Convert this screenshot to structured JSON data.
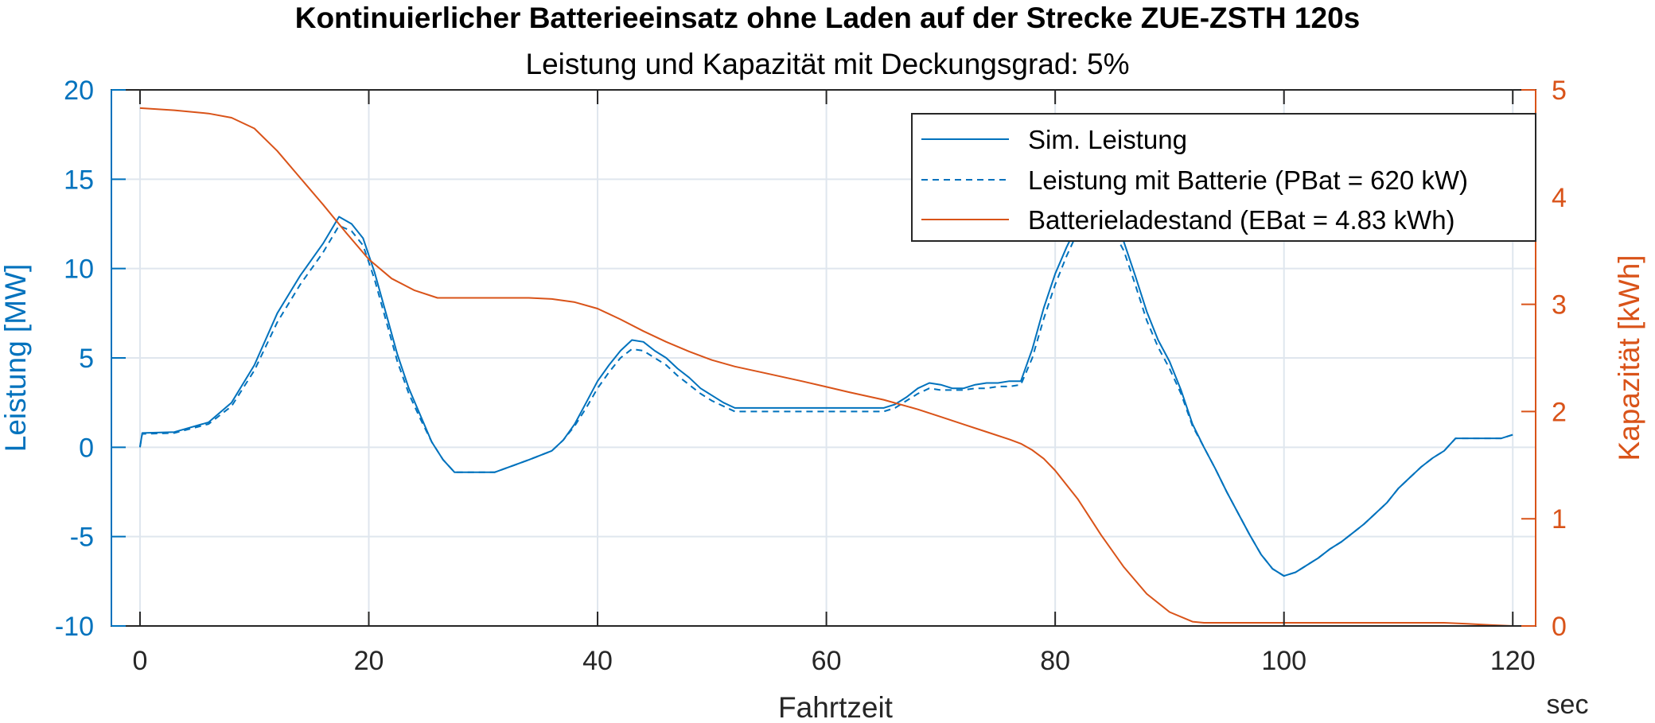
{
  "chart_data": {
    "type": "line",
    "title": "Kontinuierlicher Batterieeinsatz ohne Laden auf der Strecke ZUE-ZSTH 120s",
    "subtitle": "Leistung und Kapazität mit Deckungsgrad: 5%",
    "xlabel": "Fahrtzeit",
    "xunit": "sec",
    "ylabel_left": "Leistung [MW]",
    "ylabel_right": "Kapazität [kWh]",
    "xlim": [
      -2.5,
      122
    ],
    "ylim_left": [
      -10,
      20
    ],
    "ylim_right": [
      0,
      5
    ],
    "xticks": [
      0,
      20,
      40,
      60,
      80,
      100,
      120
    ],
    "yticks_left": [
      -10,
      -5,
      0,
      5,
      10,
      15,
      20
    ],
    "yticks_right": [
      0,
      1,
      2,
      3,
      4,
      5
    ],
    "xtick_labels": [
      "0",
      "20",
      "40",
      "60",
      "80",
      "100",
      "120"
    ],
    "ytick_labels_left": [
      "-10",
      "-5",
      "0",
      "5",
      "10",
      "15",
      "20"
    ],
    "ytick_labels_right": [
      "0",
      "1",
      "2",
      "3",
      "4",
      "5"
    ],
    "grid": true,
    "legend_position": "top-right",
    "colors": {
      "left_axis": "#0072BD",
      "right_axis": "#D95319",
      "grid": "#DFE6EE",
      "text": "#262626"
    },
    "series": [
      {
        "name": "Sim. Leistung",
        "axis": "left",
        "color": "#0072BD",
        "style": "solid",
        "x": [
          0,
          0.2,
          3,
          6,
          8,
          10,
          12,
          14,
          16,
          17.4,
          18.5,
          19.5,
          20.5,
          21.5,
          22.5,
          23.5,
          24.5,
          25.5,
          26.5,
          27.5,
          28,
          31,
          34,
          36,
          37,
          38,
          39,
          40,
          41,
          42,
          43,
          44,
          45,
          46,
          47,
          48,
          49,
          50,
          51,
          52,
          55,
          60,
          65,
          66,
          67,
          68,
          69,
          70,
          71,
          72,
          73,
          74,
          75,
          76,
          77,
          78,
          79,
          80,
          81,
          82,
          83,
          84,
          85,
          86,
          87,
          88,
          89,
          90,
          91,
          92,
          93,
          94,
          95,
          96,
          97,
          98,
          99,
          100,
          101,
          102,
          103,
          104,
          105,
          106,
          107,
          108,
          109,
          110,
          111,
          112,
          113,
          114,
          115,
          116,
          117,
          118,
          119,
          120
        ],
        "values": [
          0,
          0.8,
          0.85,
          1.4,
          2.5,
          4.6,
          7.5,
          9.6,
          11.4,
          12.9,
          12.5,
          11.7,
          9.8,
          7.5,
          5.2,
          3.3,
          1.8,
          0.3,
          -0.7,
          -1.4,
          -1.4,
          -1.4,
          -0.7,
          -0.2,
          0.4,
          1.3,
          2.5,
          3.7,
          4.6,
          5.4,
          6.0,
          5.9,
          5.4,
          5.0,
          4.4,
          3.9,
          3.3,
          2.9,
          2.5,
          2.2,
          2.2,
          2.2,
          2.2,
          2.4,
          2.8,
          3.3,
          3.6,
          3.5,
          3.3,
          3.3,
          3.5,
          3.6,
          3.6,
          3.7,
          3.7,
          5.5,
          7.8,
          9.7,
          11.2,
          12.5,
          13.1,
          13.3,
          12.7,
          11.5,
          9.6,
          7.6,
          6.0,
          4.8,
          3.2,
          1.3,
          0.0,
          -1.2,
          -2.5,
          -3.7,
          -4.9,
          -6.0,
          -6.8,
          -7.2,
          -7.0,
          -6.6,
          -6.2,
          -5.7,
          -5.3,
          -4.8,
          -4.3,
          -3.7,
          -3.1,
          -2.3,
          -1.7,
          -1.1,
          -0.6,
          -0.2,
          0.5,
          0.5,
          0.5,
          0.5,
          0.5,
          0.7
        ]
      },
      {
        "name": "Leistung mit Batterie (PBat = 620 kW)",
        "axis": "left",
        "color": "#0072BD",
        "style": "dashed",
        "x": [
          0,
          0.2,
          3,
          6,
          8,
          10,
          12,
          14,
          16,
          17.4,
          18.5,
          19.5,
          20.5,
          21.5,
          22.5,
          23.5,
          24.5,
          25.5,
          26.5,
          27.5,
          28,
          31,
          34,
          36,
          37,
          38,
          39,
          40,
          41,
          42,
          43,
          44,
          45,
          46,
          47,
          48,
          49,
          50,
          51,
          52,
          55,
          60,
          65,
          66,
          67,
          68,
          69,
          70,
          71,
          72,
          73,
          74,
          75,
          76,
          77,
          78,
          79,
          80,
          81,
          82,
          83,
          84,
          85,
          86,
          87,
          88,
          89,
          90,
          91,
          92,
          93,
          94,
          95,
          96,
          97,
          98,
          99,
          100,
          101,
          102,
          103,
          104,
          105,
          106,
          107,
          108,
          109,
          110,
          111,
          112,
          113,
          114,
          115,
          116,
          117,
          118,
          119,
          120
        ],
        "values": [
          0,
          0.75,
          0.8,
          1.3,
          2.3,
          4.3,
          7.0,
          9.1,
          10.9,
          12.4,
          12.1,
          11.3,
          9.4,
          7.1,
          4.8,
          3.0,
          1.6,
          0.3,
          -0.7,
          -1.4,
          -1.4,
          -1.4,
          -0.7,
          -0.2,
          0.4,
          1.2,
          2.2,
          3.3,
          4.2,
          5.0,
          5.5,
          5.4,
          5.0,
          4.6,
          4.0,
          3.5,
          3.0,
          2.6,
          2.3,
          2.0,
          2.0,
          2.0,
          2.0,
          2.2,
          2.6,
          3.0,
          3.3,
          3.2,
          3.2,
          3.2,
          3.3,
          3.3,
          3.4,
          3.4,
          3.5,
          5.0,
          7.2,
          9.1,
          10.7,
          12.1,
          12.7,
          12.8,
          12.2,
          11.0,
          9.1,
          7.1,
          5.6,
          4.4,
          3.0,
          1.2,
          0.0,
          -1.2,
          -2.5,
          -3.7,
          -4.9,
          -6.0,
          -6.8,
          -7.2,
          -7.0,
          -6.6,
          -6.2,
          -5.7,
          -5.3,
          -4.8,
          -4.3,
          -3.7,
          -3.1,
          -2.3,
          -1.7,
          -1.1,
          -0.6,
          -0.2,
          0.5,
          0.5,
          0.5,
          0.5,
          0.5,
          0.7
        ]
      },
      {
        "name": "Batterieladestand (EBat = 4.83 kWh)",
        "axis": "right",
        "color": "#D95319",
        "style": "solid",
        "x": [
          0,
          3,
          6,
          8,
          10,
          12,
          14,
          16,
          18,
          20,
          22,
          24,
          26,
          28,
          30,
          32,
          34,
          36,
          38,
          40,
          42,
          44,
          46,
          48,
          50,
          52,
          55,
          58,
          60,
          62,
          65,
          68,
          70,
          72,
          74,
          76,
          77,
          78,
          79,
          80,
          82,
          84,
          86,
          88,
          90,
          92,
          93,
          95,
          100,
          105,
          110,
          114,
          116,
          118,
          120
        ],
        "values": [
          4.83,
          4.81,
          4.78,
          4.74,
          4.64,
          4.43,
          4.18,
          3.93,
          3.67,
          3.42,
          3.24,
          3.13,
          3.06,
          3.06,
          3.06,
          3.06,
          3.06,
          3.05,
          3.02,
          2.96,
          2.86,
          2.75,
          2.65,
          2.56,
          2.48,
          2.42,
          2.35,
          2.28,
          2.23,
          2.18,
          2.11,
          2.02,
          1.95,
          1.88,
          1.81,
          1.74,
          1.7,
          1.64,
          1.56,
          1.45,
          1.18,
          0.85,
          0.55,
          0.3,
          0.13,
          0.04,
          0.03,
          0.03,
          0.03,
          0.03,
          0.03,
          0.03,
          0.02,
          0.01,
          0.0
        ]
      }
    ]
  }
}
